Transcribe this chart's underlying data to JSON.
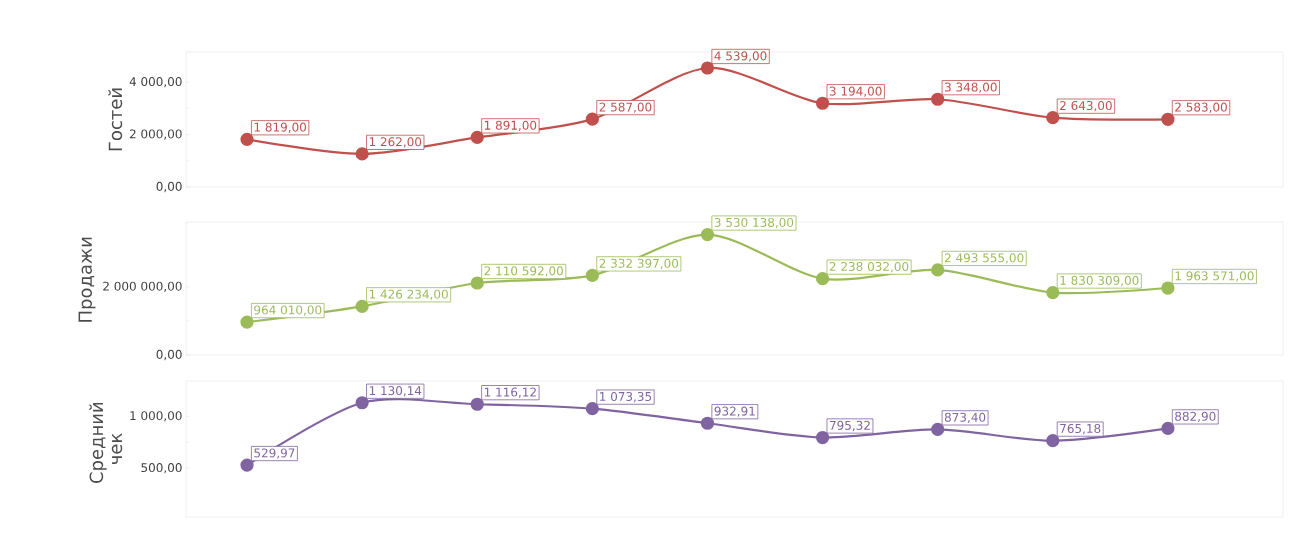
{
  "chart_data": [
    {
      "type": "line",
      "ylabel": "Гостей",
      "categories": [
        null,
        null,
        null,
        null,
        null,
        null,
        null,
        null,
        null
      ],
      "marker": "circle",
      "tick_labels": "y",
      "ylim": [
        0,
        5150
      ],
      "yticks": [
        {
          "value": 0,
          "label": "0,00"
        },
        {
          "value": 2000,
          "label": "2 000,00"
        },
        {
          "value": 4000,
          "label": "4 000,00"
        }
      ],
      "series": [
        {
          "color": "#c0504d",
          "values": [
            1819,
            1262,
            1891,
            2587,
            4539,
            3194,
            3348,
            2643,
            2583
          ],
          "value_labels": [
            "1 819,00",
            "1 262,00",
            "1 891,00",
            "2 587,00",
            "4 539,00",
            "3 194,00",
            "3 348,00",
            "2 643,00",
            "2 583,00"
          ]
        }
      ]
    },
    {
      "type": "line",
      "ylabel": "Продажи",
      "categories": [
        null,
        null,
        null,
        null,
        null,
        null,
        null,
        null,
        null
      ],
      "marker": "circle",
      "tick_labels": "y",
      "ylim": [
        0,
        3900000
      ],
      "yticks": [
        {
          "value": 0,
          "label": "0,00"
        },
        {
          "value": 2000000,
          "label": "2 000 000,00"
        }
      ],
      "series": [
        {
          "color": "#9bbb59",
          "values": [
            964010,
            1426234,
            2110592,
            2332397,
            3530138,
            2238032,
            2493555,
            1830309,
            1963571
          ],
          "value_labels": [
            "964 010,00",
            "1 426 234,00",
            "2 110 592,00",
            "2 332 397,00",
            "3 530 138,00",
            "2 238 032,00",
            "2 493 555,00",
            "1 830 309,00",
            "1 963 571,00"
          ]
        }
      ]
    },
    {
      "type": "line",
      "ylabel": "Средний чек",
      "categories": [
        null,
        null,
        null,
        null,
        null,
        null,
        null,
        null,
        null
      ],
      "marker": "circle",
      "tick_labels": "y",
      "ylim": [
        30,
        1340
      ],
      "yticks": [
        {
          "value": 500,
          "label": "500,00"
        },
        {
          "value": 1000,
          "label": "1 000,00"
        }
      ],
      "series": [
        {
          "color": "#8064a2",
          "values": [
            529.97,
            1130.14,
            1116.12,
            1073.35,
            932.91,
            795.32,
            873.4,
            765.18,
            882.9
          ],
          "value_labels": [
            "529,97",
            "1 130,14",
            "1 116,12",
            "1 073,35",
            "932,91",
            "795,32",
            "873,40",
            "765,18",
            "882,90"
          ]
        }
      ]
    }
  ]
}
